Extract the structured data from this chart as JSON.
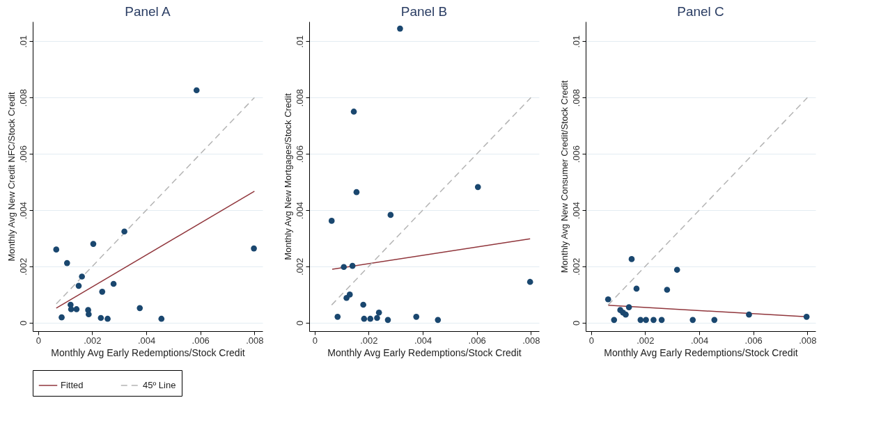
{
  "chart_data": [
    {
      "type": "scatter",
      "title": "Panel A",
      "xlabel": "Monthly Avg Early Redemptions/Stock Credit",
      "ylabel": "Monthly Avg New Credit NFC/Stock Credit",
      "xlim": [
        -0.0002,
        0.0083
      ],
      "ylim": [
        -0.0003,
        0.0107
      ],
      "xticks": [
        {
          "value": 0,
          "label": "0"
        },
        {
          "value": 0.002,
          "label": ".002"
        },
        {
          "value": 0.004,
          "label": ".004"
        },
        {
          "value": 0.006,
          "label": ".006"
        },
        {
          "value": 0.008,
          "label": ".008"
        }
      ],
      "yticks": [
        {
          "value": 0,
          "label": "0"
        },
        {
          "value": 0.002,
          "label": ".002"
        },
        {
          "value": 0.004,
          "label": ".004"
        },
        {
          "value": 0.006,
          "label": ".006"
        },
        {
          "value": 0.008,
          "label": ".008"
        },
        {
          "value": 0.01,
          "label": ".01"
        }
      ],
      "grid": "y",
      "legend": "bottom",
      "series": [
        {
          "type": "scatter",
          "color": "#1a476f",
          "marker": "circle",
          "x": [
            0.00067,
            0.00107,
            0.00087,
            0.0012,
            0.00122,
            0.00142,
            0.0015,
            0.00162,
            0.00185,
            0.00187,
            0.00204,
            0.00237,
            0.00232,
            0.00257,
            0.00279,
            0.00319,
            0.00376,
            0.00456,
            0.00586,
            0.00798
          ],
          "values": [
            0.0026,
            0.00212,
            0.00019,
            0.00064,
            0.00048,
            0.00048,
            0.00131,
            0.00164,
            0.00045,
            0.0003,
            0.0028,
            0.0011,
            0.00017,
            0.00014,
            0.00138,
            0.00324,
            0.00052,
            0.00014,
            0.00826,
            0.00264
          ]
        },
        {
          "type": "line",
          "name": "Fitted",
          "color": "#90353b",
          "line_style": "solid",
          "x": [
            0.00067,
            0.008
          ],
          "values": [
            0.00052,
            0.00467
          ]
        },
        {
          "type": "line",
          "name": "45º Line",
          "color": "#b4b4b4",
          "line_style": "dashed",
          "x": [
            0.00067,
            0.008
          ],
          "values": [
            0.00067,
            0.008
          ]
        }
      ]
    },
    {
      "type": "scatter",
      "title": "Panel B",
      "xlabel": "Monthly Avg Early Redemptions/Stock Credit",
      "ylabel": "Monthly Avg New Mortgages/Stock Credit",
      "xlim": [
        -0.0002,
        0.0083
      ],
      "ylim": [
        -0.0003,
        0.0107
      ],
      "xticks": [
        {
          "value": 0,
          "label": "0"
        },
        {
          "value": 0.002,
          "label": ".002"
        },
        {
          "value": 0.004,
          "label": ".004"
        },
        {
          "value": 0.006,
          "label": ".006"
        },
        {
          "value": 0.008,
          "label": ".008"
        }
      ],
      "yticks": [
        {
          "value": 0,
          "label": "0"
        },
        {
          "value": 0.002,
          "label": ".002"
        },
        {
          "value": 0.004,
          "label": ".004"
        },
        {
          "value": 0.006,
          "label": ".006"
        },
        {
          "value": 0.008,
          "label": ".008"
        },
        {
          "value": 0.01,
          "label": ".01"
        }
      ],
      "grid": "y",
      "legend": "bottom",
      "series": [
        {
          "type": "scatter",
          "color": "#1a476f",
          "marker": "circle",
          "x": [
            0.00063,
            0.00085,
            0.00108,
            0.0014,
            0.00118,
            0.0013,
            0.0018,
            0.00183,
            0.00206,
            0.00231,
            0.00238,
            0.00271,
            0.00281,
            0.00376,
            0.00456,
            0.00797,
            0.00145,
            0.00155,
            0.00316,
            0.00604
          ],
          "values": [
            0.00362,
            0.00021,
            0.00198,
            0.00202,
            0.00088,
            0.001,
            0.00064,
            0.00014,
            0.00014,
            0.00017,
            0.00036,
            0.0001,
            0.00383,
            0.00021,
            0.0001,
            0.00145,
            0.0075,
            0.00464,
            0.01045,
            0.00482
          ]
        },
        {
          "type": "line",
          "name": "Fitted",
          "color": "#90353b",
          "line_style": "solid",
          "x": [
            0.00065,
            0.00797
          ],
          "values": [
            0.0019,
            0.00298
          ]
        },
        {
          "type": "line",
          "name": "45º Line",
          "color": "#b4b4b4",
          "line_style": "dashed",
          "x": [
            0.00063,
            0.008
          ],
          "values": [
            0.00063,
            0.008
          ]
        }
      ]
    },
    {
      "type": "scatter",
      "title": "Panel C",
      "xlabel": "Monthly Avg Early Redemptions/Stock Credit",
      "ylabel": "Monthly Avg New Consumer Credit/Stock Credit",
      "xlim": [
        -0.0002,
        0.0083
      ],
      "ylim": [
        -0.0003,
        0.0107
      ],
      "xticks": [
        {
          "value": 0,
          "label": "0"
        },
        {
          "value": 0.002,
          "label": ".002"
        },
        {
          "value": 0.004,
          "label": ".004"
        },
        {
          "value": 0.006,
          "label": ".006"
        },
        {
          "value": 0.008,
          "label": ".008"
        }
      ],
      "yticks": [
        {
          "value": 0,
          "label": "0"
        },
        {
          "value": 0.002,
          "label": ".002"
        },
        {
          "value": 0.004,
          "label": ".004"
        },
        {
          "value": 0.006,
          "label": ".006"
        },
        {
          "value": 0.008,
          "label": ".008"
        },
        {
          "value": 0.01,
          "label": ".01"
        }
      ],
      "grid": "y",
      "legend": "bottom",
      "series": [
        {
          "type": "scatter",
          "color": "#1a476f",
          "marker": "circle",
          "x": [
            0.00063,
            0.00085,
            0.00108,
            0.00118,
            0.00128,
            0.0014,
            0.0015,
            0.00168,
            0.00183,
            0.00203,
            0.00231,
            0.00261,
            0.00281,
            0.00318,
            0.00376,
            0.00456,
            0.00584,
            0.00797
          ],
          "values": [
            0.00083,
            0.0001,
            0.00045,
            0.00036,
            0.00029,
            0.00055,
            0.00226,
            0.00121,
            0.0001,
            0.0001,
            0.0001,
            0.0001,
            0.00117,
            0.00188,
            0.0001,
            0.0001,
            0.00029,
            0.00021
          ]
        },
        {
          "type": "line",
          "name": "Fitted",
          "color": "#90353b",
          "line_style": "solid",
          "x": [
            0.00063,
            0.00797
          ],
          "values": [
            0.00062,
            0.00021
          ]
        },
        {
          "type": "line",
          "name": "45º Line",
          "color": "#b4b4b4",
          "line_style": "dashed",
          "x": [
            0.00063,
            0.008
          ],
          "values": [
            0.00063,
            0.008
          ]
        }
      ]
    }
  ]
}
